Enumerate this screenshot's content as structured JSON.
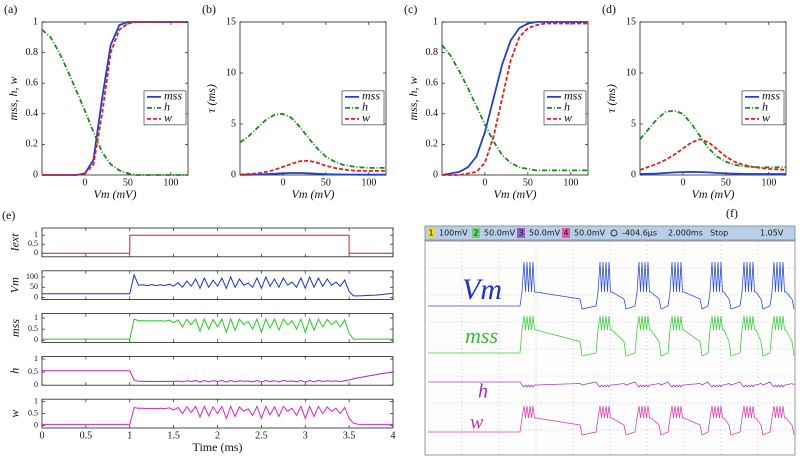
{
  "chart_data": [
    {
      "type": "line",
      "label": "(a)",
      "xlabel": "Vm (mV)",
      "ylabel": "mss, h, w",
      "legend": "right",
      "x": [
        -50,
        -40,
        -30,
        -20,
        -10,
        0,
        10,
        20,
        30,
        40,
        50,
        60,
        70,
        80,
        90,
        100,
        110,
        120
      ],
      "xlim": [
        -50,
        120
      ],
      "xticks": [
        0,
        50,
        100
      ],
      "ylim": [
        0,
        1
      ],
      "yticks": [
        0,
        0.2,
        0.4,
        0.6,
        0.8,
        1
      ],
      "series": [
        {
          "name": "mss",
          "color": "#1f3fd6",
          "style": "solid",
          "values": [
            0,
            0,
            0,
            0,
            0,
            0.01,
            0.1,
            0.5,
            0.85,
            0.98,
            1,
            1,
            1,
            1,
            1,
            1,
            1,
            1
          ]
        },
        {
          "name": "h",
          "color": "#1a8a1a",
          "style": "dash-dot",
          "values": [
            0.95,
            0.9,
            0.8,
            0.68,
            0.55,
            0.42,
            0.28,
            0.15,
            0.07,
            0.03,
            0.01,
            0,
            0,
            0,
            0,
            0,
            0,
            0
          ]
        },
        {
          "name": "w",
          "color": "#e02020",
          "style": "dashed",
          "values": [
            0,
            0,
            0,
            0,
            0,
            0.01,
            0.07,
            0.4,
            0.8,
            0.95,
            0.99,
            1,
            1,
            1,
            1,
            1,
            1,
            1
          ]
        }
      ]
    },
    {
      "type": "line",
      "label": "(b)",
      "xlabel": "Vm (mV)",
      "ylabel": "τ (ms)",
      "legend": "right",
      "x": [
        -50,
        -40,
        -30,
        -20,
        -10,
        0,
        10,
        20,
        30,
        40,
        50,
        60,
        70,
        80,
        90,
        100,
        110,
        120
      ],
      "xlim": [
        -50,
        120
      ],
      "xticks": [
        0,
        50,
        100
      ],
      "ylim": [
        0,
        15
      ],
      "yticks": [
        0,
        5,
        10,
        15
      ],
      "series": [
        {
          "name": "mss",
          "color": "#1f3fd6",
          "style": "solid",
          "values": [
            0.02,
            0.03,
            0.05,
            0.08,
            0.12,
            0.17,
            0.2,
            0.2,
            0.17,
            0.12,
            0.08,
            0.06,
            0.05,
            0.04,
            0.03,
            0.03,
            0.03,
            0.03
          ]
        },
        {
          "name": "h",
          "color": "#1a8a1a",
          "style": "dash-dot",
          "values": [
            3.2,
            3.8,
            4.6,
            5.4,
            5.9,
            6,
            5.6,
            4.7,
            3.6,
            2.6,
            1.8,
            1.3,
            1.0,
            0.85,
            0.75,
            0.7,
            0.7,
            0.7
          ]
        },
        {
          "name": "w",
          "color": "#e02020",
          "style": "dashed",
          "values": [
            0.05,
            0.1,
            0.15,
            0.3,
            0.5,
            0.8,
            1.1,
            1.35,
            1.4,
            1.2,
            0.9,
            0.7,
            0.55,
            0.45,
            0.4,
            0.4,
            0.4,
            0.4
          ]
        }
      ]
    },
    {
      "type": "line",
      "label": "(c)",
      "xlabel": "Vm (mV)",
      "ylabel": "mss, h, w",
      "legend": "right",
      "x": [
        -50,
        -40,
        -30,
        -20,
        -10,
        0,
        10,
        20,
        30,
        40,
        50,
        60,
        70,
        80,
        90,
        100,
        110,
        120
      ],
      "xlim": [
        -50,
        120
      ],
      "xticks": [
        0,
        50,
        100
      ],
      "ylim": [
        0,
        1
      ],
      "yticks": [
        0,
        0.2,
        0.4,
        0.6,
        0.8,
        1
      ],
      "series": [
        {
          "name": "mss",
          "color": "#1f3fd6",
          "style": "solid",
          "values": [
            0,
            0.01,
            0.02,
            0.05,
            0.12,
            0.28,
            0.5,
            0.72,
            0.88,
            0.96,
            0.99,
            1,
            1,
            1,
            1,
            1,
            1,
            1
          ]
        },
        {
          "name": "h",
          "color": "#1a8a1a",
          "style": "dash-dot",
          "values": [
            0.85,
            0.78,
            0.68,
            0.57,
            0.45,
            0.33,
            0.22,
            0.13,
            0.08,
            0.05,
            0.04,
            0.03,
            0.03,
            0.03,
            0.03,
            0.03,
            0.03,
            0.03
          ]
        },
        {
          "name": "w",
          "color": "#e02020",
          "style": "dashed",
          "values": [
            0,
            0,
            0,
            0.01,
            0.02,
            0.08,
            0.25,
            0.5,
            0.75,
            0.9,
            0.96,
            0.98,
            0.99,
            0.99,
            0.99,
            0.99,
            0.99,
            0.99
          ]
        }
      ]
    },
    {
      "type": "line",
      "label": "(d)",
      "xlabel": "Vm (mV)",
      "ylabel": "τ (ms)",
      "legend": "right",
      "x": [
        -50,
        -40,
        -30,
        -20,
        -10,
        0,
        10,
        20,
        30,
        40,
        50,
        60,
        70,
        80,
        90,
        100,
        110,
        120
      ],
      "xlim": [
        -50,
        120
      ],
      "xticks": [
        0,
        50,
        100
      ],
      "ylim": [
        0,
        15
      ],
      "yticks": [
        0,
        5,
        10,
        15
      ],
      "series": [
        {
          "name": "mss",
          "color": "#1f3fd6",
          "style": "solid",
          "values": [
            0.1,
            0.12,
            0.15,
            0.2,
            0.25,
            0.28,
            0.3,
            0.28,
            0.25,
            0.2,
            0.16,
            0.13,
            0.11,
            0.1,
            0.1,
            0.1,
            0.1,
            0.1
          ]
        },
        {
          "name": "h",
          "color": "#1a8a1a",
          "style": "dash-dot",
          "values": [
            3.5,
            4.5,
            5.5,
            6.2,
            6.3,
            6,
            5,
            3.8,
            2.6,
            1.8,
            1.3,
            1.0,
            0.85,
            0.8,
            0.75,
            0.75,
            0.75,
            0.75
          ]
        },
        {
          "name": "w",
          "color": "#e02020",
          "style": "dashed",
          "values": [
            0.5,
            0.8,
            1.1,
            1.5,
            2.0,
            2.6,
            3.2,
            3.5,
            3.2,
            2.5,
            1.8,
            1.3,
            1,
            0.8,
            0.7,
            0.6,
            0.55,
            0.5
          ]
        }
      ]
    },
    {
      "type": "stacked-lines",
      "label": "(e)",
      "xlabel": "Time (ms)",
      "xlim": [
        0,
        4
      ],
      "xticks": [
        0,
        0.5,
        1,
        1.5,
        2,
        2.5,
        3,
        3.5,
        4
      ],
      "x": [
        0,
        0.05,
        0.1,
        0.15,
        0.2,
        0.25,
        0.3,
        0.35,
        0.4,
        0.45,
        0.5,
        0.55,
        0.6,
        0.65,
        0.7,
        0.75,
        0.8,
        0.85,
        0.9,
        0.95,
        1,
        1.05,
        1.1,
        1.15,
        1.2,
        1.25,
        1.3,
        1.35,
        1.4,
        1.45,
        1.5,
        1.55,
        1.6,
        1.65,
        1.7,
        1.75,
        1.8,
        1.85,
        1.9,
        1.95,
        2,
        2.05,
        2.1,
        2.15,
        2.2,
        2.25,
        2.3,
        2.35,
        2.4,
        2.45,
        2.5,
        2.55,
        2.6,
        2.65,
        2.7,
        2.75,
        2.8,
        2.85,
        2.9,
        2.95,
        3,
        3.05,
        3.1,
        3.15,
        3.2,
        3.25,
        3.3,
        3.35,
        3.4,
        3.45,
        3.5,
        3.55,
        3.6,
        3.65,
        3.7,
        3.75,
        3.8,
        3.85,
        3.9,
        3.95,
        4
      ],
      "panels": [
        {
          "ylabel": "Iext",
          "color": "#d42020",
          "ylim": [
            -0.2,
            1.4
          ],
          "yticks": [
            0,
            0.5,
            1
          ],
          "x": [
            0,
            1,
            1,
            3.5,
            3.5,
            4
          ],
          "values": [
            0,
            0,
            1,
            1,
            0,
            0
          ]
        },
        {
          "ylabel": "Vm",
          "color": "#1f2fd0",
          "ylim": [
            -10,
            130
          ],
          "yticks": [
            0,
            50,
            100
          ],
          "values": [
            18,
            18,
            18,
            18,
            18,
            18,
            18,
            18,
            18,
            18,
            18,
            18,
            18,
            18,
            18,
            18,
            18,
            18,
            18,
            18,
            18,
            110,
            60,
            62,
            58,
            63,
            58,
            62,
            58,
            65,
            55,
            72,
            50,
            80,
            55,
            90,
            45,
            95,
            50,
            85,
            55,
            95,
            45,
            100,
            50,
            90,
            60,
            70,
            50,
            95,
            45,
            100,
            55,
            90,
            50,
            95,
            60,
            75,
            50,
            95,
            45,
            100,
            50,
            95,
            55,
            90,
            60,
            75,
            55,
            85,
            30,
            8,
            8,
            9,
            10,
            11,
            12,
            14,
            16,
            18,
            20
          ]
        },
        {
          "ylabel": "mss",
          "color": "#22d022",
          "ylim": [
            -0.1,
            1.2
          ],
          "yticks": [
            0,
            0.5,
            1
          ],
          "values": [
            0.05,
            0.05,
            0.05,
            0.05,
            0.05,
            0.05,
            0.05,
            0.05,
            0.05,
            0.05,
            0.05,
            0.05,
            0.05,
            0.05,
            0.05,
            0.05,
            0.05,
            0.05,
            0.05,
            0.05,
            0.05,
            0.95,
            0.88,
            0.88,
            0.87,
            0.88,
            0.87,
            0.88,
            0.86,
            0.9,
            0.8,
            0.92,
            0.6,
            0.94,
            0.7,
            0.95,
            0.4,
            0.95,
            0.5,
            0.94,
            0.6,
            0.95,
            0.35,
            0.96,
            0.45,
            0.95,
            0.7,
            0.85,
            0.5,
            0.95,
            0.35,
            0.96,
            0.55,
            0.95,
            0.45,
            0.95,
            0.7,
            0.88,
            0.5,
            0.95,
            0.35,
            0.96,
            0.45,
            0.95,
            0.6,
            0.94,
            0.7,
            0.88,
            0.6,
            0.92,
            0.3,
            0.05,
            0.05,
            0.05,
            0.05,
            0.05,
            0.05,
            0.05,
            0.05,
            0.05,
            0.05
          ]
        },
        {
          "ylabel": "h",
          "color": "#b020c8",
          "ylim": [
            0,
            1.1
          ],
          "yticks": [
            0,
            0.5,
            1
          ],
          "values": [
            0.55,
            0.55,
            0.55,
            0.55,
            0.55,
            0.55,
            0.55,
            0.55,
            0.55,
            0.55,
            0.55,
            0.55,
            0.55,
            0.55,
            0.55,
            0.55,
            0.55,
            0.55,
            0.55,
            0.55,
            0.55,
            0.2,
            0.15,
            0.15,
            0.14,
            0.15,
            0.14,
            0.15,
            0.14,
            0.15,
            0.14,
            0.16,
            0.13,
            0.17,
            0.14,
            0.18,
            0.12,
            0.18,
            0.13,
            0.17,
            0.14,
            0.18,
            0.12,
            0.18,
            0.13,
            0.17,
            0.15,
            0.16,
            0.13,
            0.18,
            0.12,
            0.18,
            0.14,
            0.17,
            0.13,
            0.18,
            0.15,
            0.16,
            0.13,
            0.18,
            0.12,
            0.18,
            0.13,
            0.18,
            0.14,
            0.17,
            0.15,
            0.16,
            0.14,
            0.17,
            0.2,
            0.25,
            0.28,
            0.31,
            0.34,
            0.37,
            0.4,
            0.43,
            0.46,
            0.48,
            0.5
          ]
        },
        {
          "ylabel": "w",
          "color": "#e020c8",
          "ylim": [
            -0.1,
            1.1
          ],
          "yticks": [
            0,
            0.5,
            1
          ],
          "values": [
            0.05,
            0.05,
            0.05,
            0.05,
            0.05,
            0.05,
            0.05,
            0.05,
            0.05,
            0.05,
            0.05,
            0.05,
            0.05,
            0.05,
            0.05,
            0.05,
            0.05,
            0.05,
            0.05,
            0.05,
            0.05,
            0.75,
            0.72,
            0.72,
            0.71,
            0.72,
            0.71,
            0.72,
            0.7,
            0.74,
            0.65,
            0.76,
            0.5,
            0.78,
            0.55,
            0.8,
            0.35,
            0.8,
            0.4,
            0.78,
            0.5,
            0.8,
            0.3,
            0.8,
            0.38,
            0.78,
            0.6,
            0.7,
            0.42,
            0.8,
            0.3,
            0.8,
            0.45,
            0.78,
            0.38,
            0.8,
            0.6,
            0.72,
            0.42,
            0.8,
            0.3,
            0.8,
            0.38,
            0.8,
            0.5,
            0.78,
            0.6,
            0.72,
            0.5,
            0.76,
            0.3,
            0.1,
            0.06,
            0.05,
            0.05,
            0.05,
            0.05,
            0.05,
            0.05,
            0.05,
            0.05
          ]
        }
      ]
    }
  ],
  "scope": {
    "label": "(f)",
    "channels": [
      {
        "num": "1",
        "scale": "100mV"
      },
      {
        "num": "2",
        "scale": "50.0mV"
      },
      {
        "num": "3",
        "scale": "50.0mV"
      },
      {
        "num": "4",
        "scale": "50.0mV"
      }
    ],
    "offset": "-404.6µs",
    "timebase": "2.000ms",
    "status": "Stop",
    "trigger": "1.05V",
    "traces": [
      "Vm",
      "mss",
      "h",
      "w"
    ]
  }
}
